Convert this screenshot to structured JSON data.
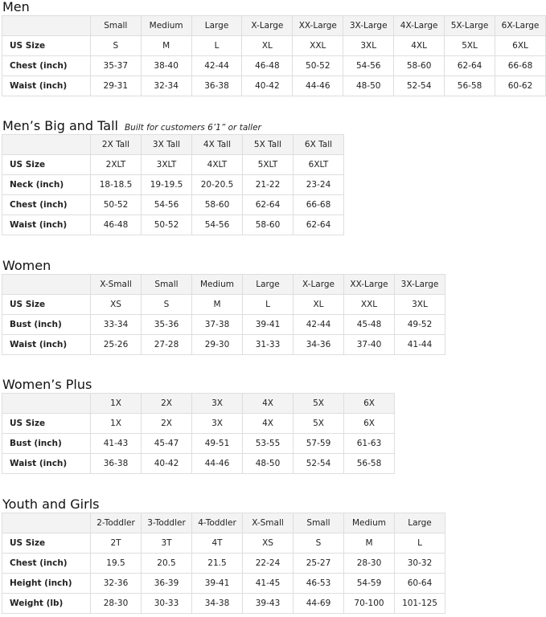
{
  "sections": [
    {
      "title": "Men",
      "subtitle": "",
      "columns": [
        "Small",
        "Medium",
        "Large",
        "X-Large",
        "XX-Large",
        "3X-Large",
        "4X-Large",
        "5X-Large",
        "6X-Large"
      ],
      "rows": [
        {
          "label": "US Size",
          "values": [
            "S",
            "M",
            "L",
            "XL",
            "XXL",
            "3XL",
            "4XL",
            "5XL",
            "6XL"
          ]
        },
        {
          "label": "Chest (inch)",
          "values": [
            "35-37",
            "38-40",
            "42-44",
            "46-48",
            "50-52",
            "54-56",
            "58-60",
            "62-64",
            "66-68"
          ]
        },
        {
          "label": "Waist (inch)",
          "values": [
            "29-31",
            "32-34",
            "36-38",
            "40-42",
            "44-46",
            "48-50",
            "52-54",
            "56-58",
            "60-62"
          ]
        }
      ]
    },
    {
      "title": "Men’s Big and Tall",
      "subtitle": "Built for customers 6’1” or taller",
      "columns": [
        "2X Tall",
        "3X Tall",
        "4X Tall",
        "5X Tall",
        "6X Tall"
      ],
      "rows": [
        {
          "label": "US Size",
          "values": [
            "2XLT",
            "3XLT",
            "4XLT",
            "5XLT",
            "6XLT"
          ]
        },
        {
          "label": "Neck (inch)",
          "values": [
            "18-18.5",
            "19-19.5",
            "20-20.5",
            "21-22",
            "23-24"
          ]
        },
        {
          "label": "Chest (inch)",
          "values": [
            "50-52",
            "54-56",
            "58-60",
            "62-64",
            "66-68"
          ]
        },
        {
          "label": "Waist (inch)",
          "values": [
            "46-48",
            "50-52",
            "54-56",
            "58-60",
            "62-64"
          ]
        }
      ]
    },
    {
      "title": "Women",
      "subtitle": "",
      "columns": [
        "X-Small",
        "Small",
        "Medium",
        "Large",
        "X-Large",
        "XX-Large",
        "3X-Large"
      ],
      "rows": [
        {
          "label": "US Size",
          "values": [
            "XS",
            "S",
            "M",
            "L",
            "XL",
            "XXL",
            "3XL"
          ]
        },
        {
          "label": "Bust (inch)",
          "values": [
            "33-34",
            "35-36",
            "37-38",
            "39-41",
            "42-44",
            "45-48",
            "49-52"
          ]
        },
        {
          "label": "Waist (inch)",
          "values": [
            "25-26",
            "27-28",
            "29-30",
            "31-33",
            "34-36",
            "37-40",
            "41-44"
          ]
        }
      ]
    },
    {
      "title": "Women’s  Plus",
      "subtitle": "",
      "columns": [
        "1X",
        "2X",
        "3X",
        "4X",
        "5X",
        "6X"
      ],
      "rows": [
        {
          "label": "US Size",
          "values": [
            "1X",
            "2X",
            "3X",
            "4X",
            "5X",
            "6X"
          ]
        },
        {
          "label": "Bust (inch)",
          "values": [
            "41-43",
            "45-47",
            "49-51",
            "53-55",
            "57-59",
            "61-63"
          ]
        },
        {
          "label": "Waist (inch)",
          "values": [
            "36-38",
            "40-42",
            "44-46",
            "48-50",
            "52-54",
            "56-58"
          ]
        }
      ]
    },
    {
      "title": "Youth and Girls",
      "subtitle": "",
      "columns": [
        "2-Toddler",
        "3-Toddler",
        "4-Toddler",
        "X-Small",
        "Small",
        "Medium",
        "Large"
      ],
      "rows": [
        {
          "label": "US Size",
          "values": [
            "2T",
            "3T",
            "4T",
            "XS",
            "S",
            "M",
            "L"
          ]
        },
        {
          "label": "Chest (inch)",
          "values": [
            "19.5",
            "20.5",
            "21.5",
            "22-24",
            "25-27",
            "28-30",
            "30-32"
          ]
        },
        {
          "label": "Height (inch)",
          "values": [
            "32-36",
            "36-39",
            "39-41",
            "41-45",
            "46-53",
            "54-59",
            "60-64"
          ]
        },
        {
          "label": "Weight (lb)",
          "values": [
            "28-30",
            "30-33",
            "34-38",
            "39-43",
            "44-69",
            "70-100",
            "101-125"
          ]
        }
      ]
    }
  ]
}
